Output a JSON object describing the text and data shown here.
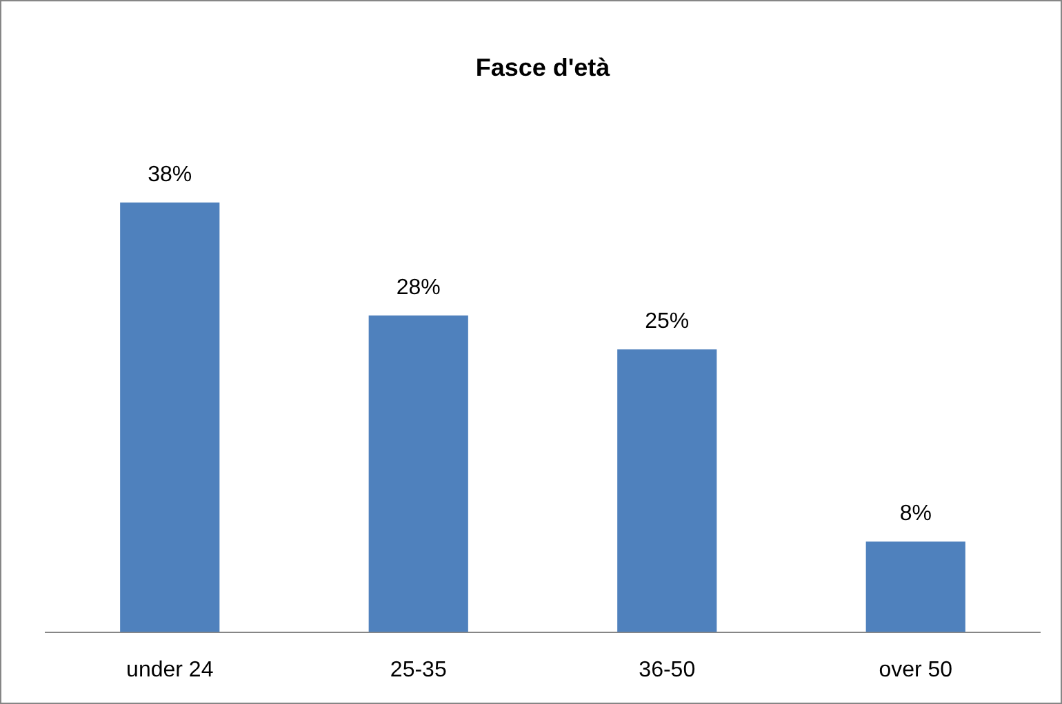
{
  "chart_data": {
    "type": "bar",
    "title": "Fasce d'età",
    "categories": [
      "under 24",
      "25-35",
      "36-50",
      "over 50"
    ],
    "values": [
      38,
      28,
      25,
      8
    ],
    "value_labels": [
      "38%",
      "28%",
      "25%",
      "8%"
    ],
    "color": "#4f81bd",
    "grid": false,
    "legend": false,
    "tick_labels": "x"
  }
}
